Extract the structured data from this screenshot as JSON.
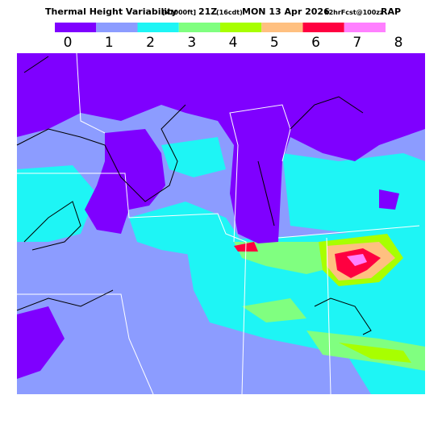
{
  "header": {
    "title_parts": [
      "Thermal Height Variability",
      "[x1000ft]",
      "21Z",
      "(16cdt)",
      "MON 13 Apr 2026",
      "12hrFcst@100zz",
      "RAP"
    ]
  },
  "legend": {
    "ticks": [
      0,
      1,
      2,
      3,
      4,
      5,
      6,
      7,
      8
    ],
    "colors": [
      "#7f00ff",
      "#8c9cff",
      "#1ef5f5",
      "#80ff80",
      "#a8ff00",
      "#ffc080",
      "#ff0040",
      "#ff80ff"
    ]
  }
}
